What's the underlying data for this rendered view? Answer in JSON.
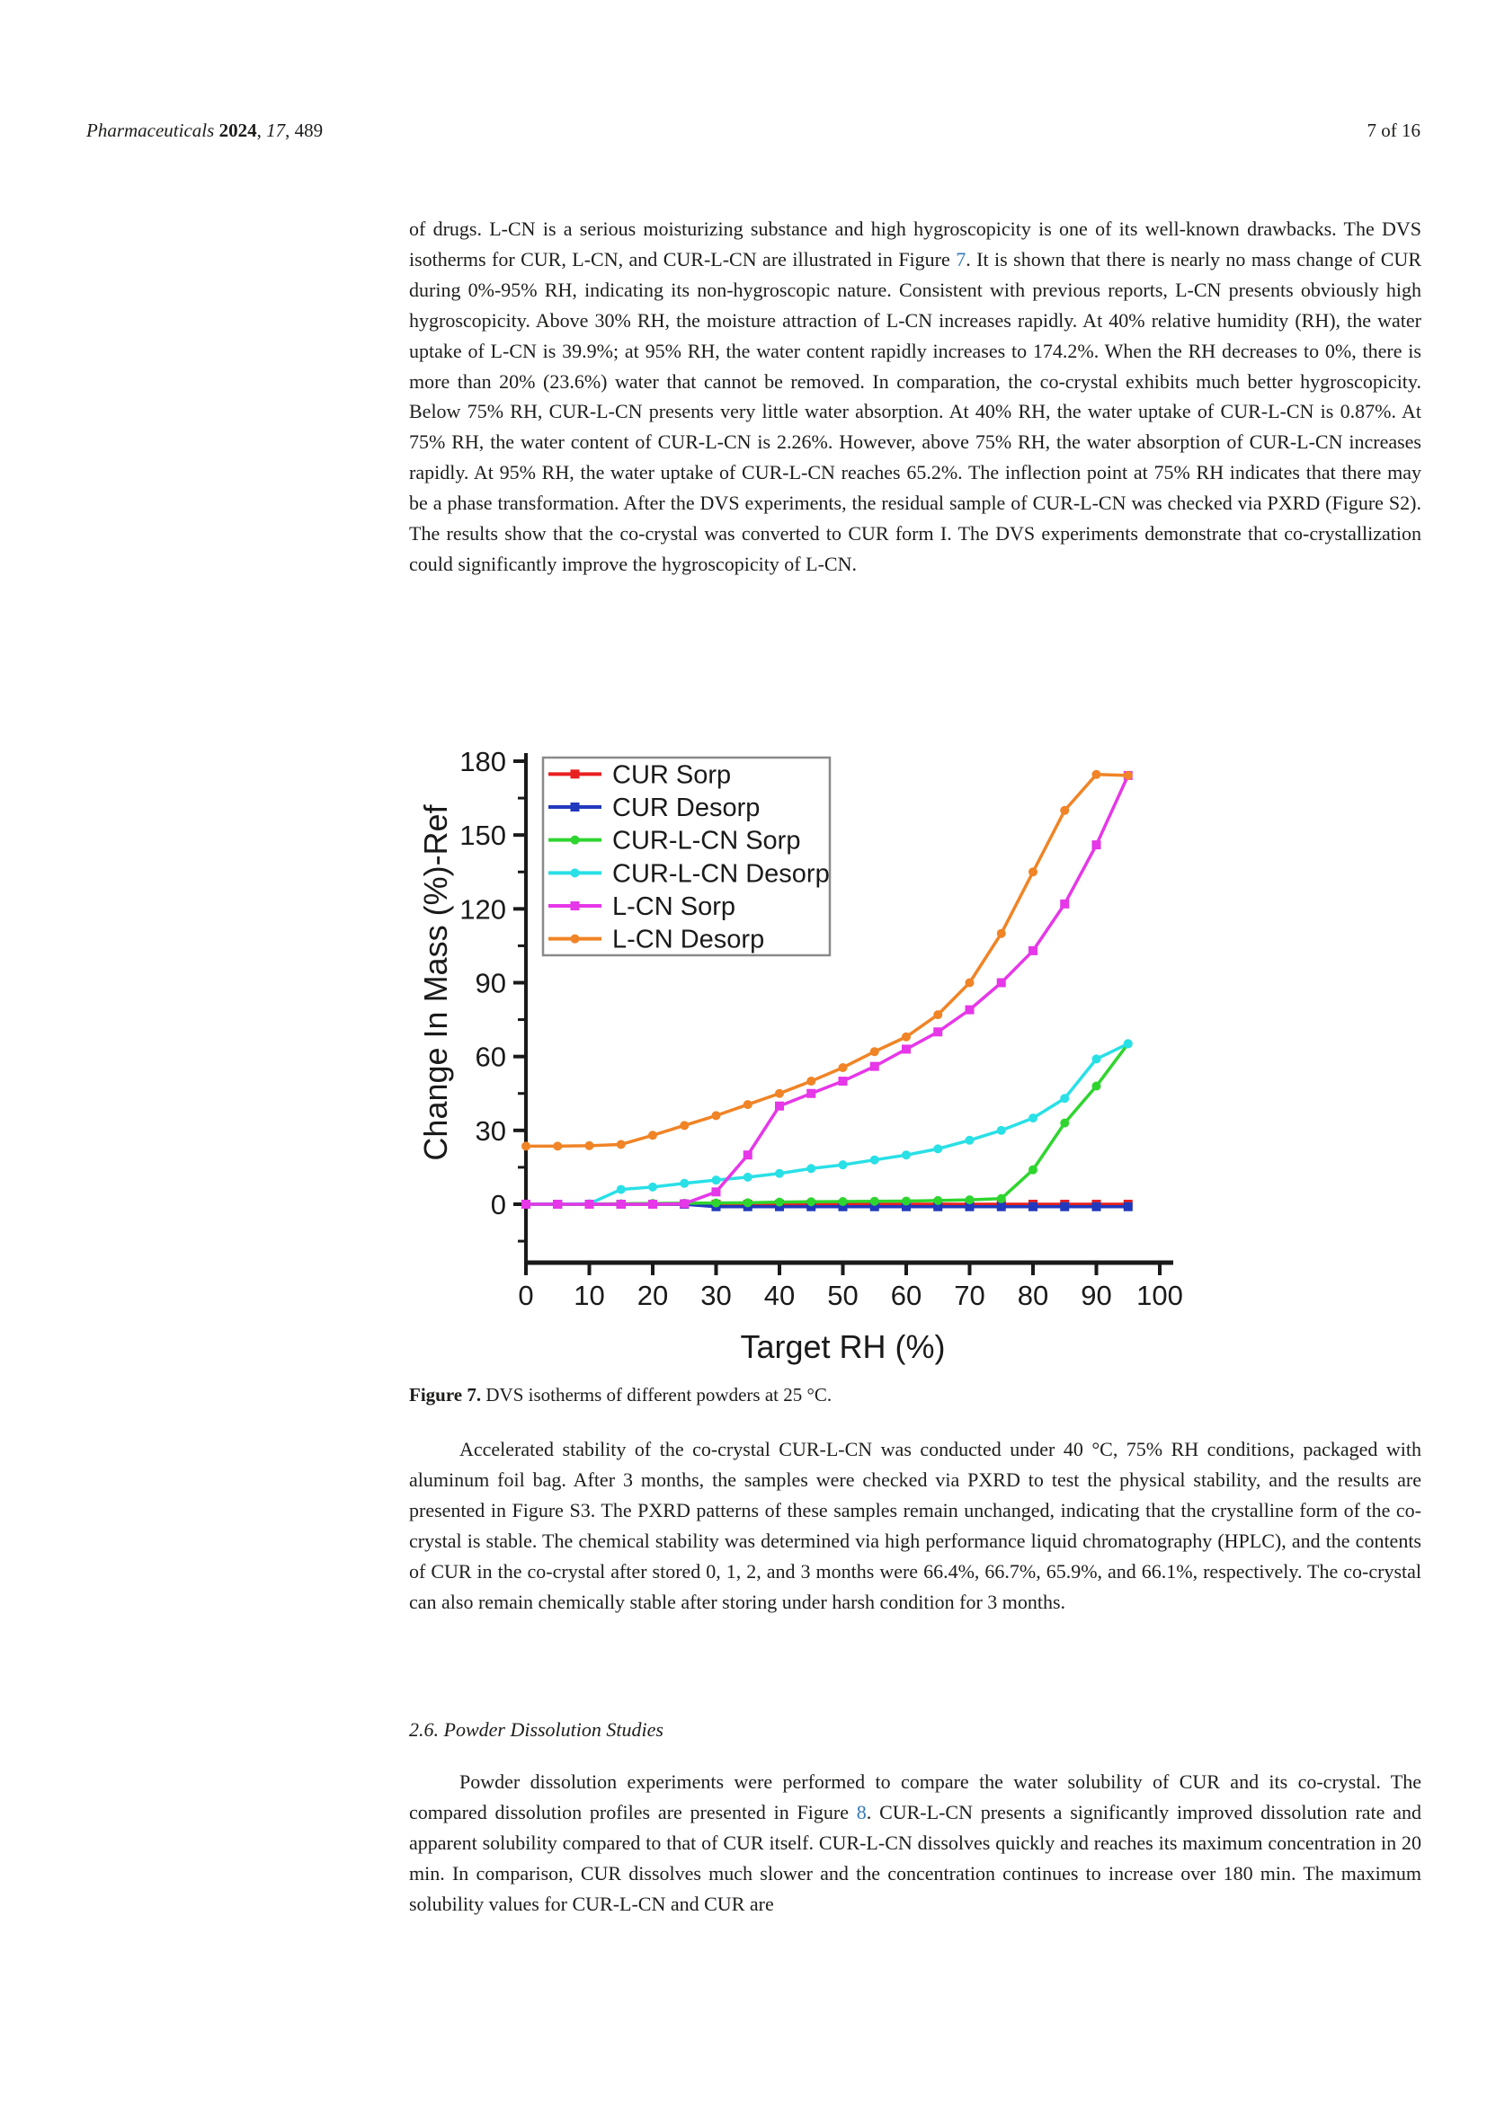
{
  "colors": {
    "text": "#1d1d1b",
    "link_blue": "#3579b8",
    "axis": "#1a1a1a",
    "legend_border": "#8a8a8a",
    "page_bg": "#ffffff"
  },
  "header": {
    "left_segments": [
      {
        "t": "Pharmaceuticals ",
        "i": true
      },
      {
        "t": "2024",
        "b": true
      },
      {
        "t": ", "
      },
      {
        "t": "17",
        "i": true
      },
      {
        "t": ", 489"
      }
    ],
    "page_info": "7 of 16"
  },
  "content": {
    "blocks": [
      {
        "type": "paragraph",
        "segments": [
          {
            "t": "of drugs. L-CN is a serious moisturizing substance and high hygroscopicity is one of its well-known drawbacks. The DVS isotherms for CUR, L-CN, and CUR-L-CN are illustrated in Figure "
          },
          {
            "t": "7",
            "link": true
          },
          {
            "t": ". It is shown that there is nearly no mass change of CUR during 0%-95% RH, indicating its non-hygroscopic nature. Consistent with previous reports, L-CN presents obviously high hygroscopicity. Above 30% RH, the moisture attraction of L-CN increases rapidly. At 40% relative humidity (RH), the water uptake of L-CN is 39.9%; at 95% RH, the water content rapidly increases to 174.2%. When the RH decreases to 0%, there is more than 20% (23.6%) water that cannot be removed. In comparation, the co-crystal exhibits much better hygroscopicity. Below 75% RH, CUR-L-CN presents very little water absorption. At 40% RH, the water uptake of CUR-L-CN is 0.87%. At 75% RH, the water content of CUR-L-CN is 2.26%. However, above 75% RH, the water absorption of CUR-L-CN increases rapidly. At 95% RH, the water uptake of CUR-L-CN reaches 65.2%. The inflection point at 75% RH indicates that there may be a phase transformation. After the DVS experiments, the residual sample of CUR-L-CN was checked via PXRD (Figure S2). The results show that the co-crystal was converted to CUR form I. The DVS experiments demonstrate that co-crystallization could significantly improve the hygroscopicity of L-CN."
          }
        ]
      },
      {
        "type": "caption",
        "segments": [
          {
            "t": "Figure 7. ",
            "b": true
          },
          {
            "t": "DVS isotherms of different powders at 25 °C."
          }
        ]
      },
      {
        "type": "paragraph",
        "segments": [
          {
            "t": "Accelerated stability of the co-crystal CUR-L-CN was conducted under 40 °C, 75% RH conditions, packaged with aluminum foil bag. After 3 months, the samples were checked via PXRD to test the physical stability, and the results are presented in Figure S3. The PXRD patterns of these samples remain unchanged, indicating that the crystalline form of the co-crystal is stable. The chemical stability was determined via high performance liquid chromatography (HPLC), and the contents of CUR in the co-crystal after stored 0, 1, 2, and 3 months were 66.4%, 66.7%, 65.9%, and 66.1%, respectively. The co-crystal can also remain chemically stable after storing under harsh condition for 3 months."
          }
        ]
      },
      {
        "type": "heading",
        "segments": [
          {
            "t": "2.6. Powder Dissolution Studies"
          }
        ]
      },
      {
        "type": "paragraph",
        "segments": [
          {
            "t": "Powder dissolution experiments were performed to compare the water solubility of CUR and its co-crystal. The compared dissolution profiles are presented in Figure "
          },
          {
            "t": "8",
            "link": true
          },
          {
            "t": ". CUR-L-CN presents a significantly improved dissolution rate and apparent solubility compared to that of CUR itself. CUR-L-CN dissolves quickly and reaches its maximum concentration in 20 min. In comparison, CUR dissolves much slower and the concentration continues to increase over 180 min. The maximum solubility values for CUR-L-CN and CUR are"
          }
        ]
      }
    ]
  },
  "chart_data": {
    "type": "line",
    "title": "",
    "xlabel": "Target RH (%)",
    "ylabel": "Change In Mass (%)-Ref",
    "xlim": [
      0,
      100
    ],
    "ylim": [
      -27,
      185
    ],
    "x_ticks": [
      0,
      10,
      20,
      30,
      40,
      50,
      60,
      70,
      80,
      90,
      100
    ],
    "y_ticks": [
      0,
      30,
      60,
      90,
      120,
      150,
      180
    ],
    "y_minor_ticks": [
      -15,
      15,
      45,
      75,
      105,
      135,
      165
    ],
    "grid": false,
    "legend_position": "upper-left-inside",
    "x": [
      0,
      5,
      10,
      15,
      20,
      25,
      30,
      35,
      40,
      45,
      50,
      55,
      60,
      65,
      70,
      75,
      80,
      85,
      90,
      95
    ],
    "series": [
      {
        "name": "CUR Sorp",
        "color": "#e8201f",
        "marker": "square",
        "values": [
          0,
          0,
          0,
          0,
          0,
          0,
          0,
          0,
          0,
          0,
          0,
          0,
          0,
          0,
          0,
          0,
          0,
          0,
          0,
          0
        ]
      },
      {
        "name": "CUR Desorp",
        "color": "#2139bd",
        "marker": "square",
        "values": [
          0,
          0,
          0,
          0,
          0,
          0,
          -1,
          -1,
          -1,
          -1,
          -1,
          -1,
          -1,
          -1,
          -1,
          -1,
          -1,
          -1,
          -1,
          -1
        ]
      },
      {
        "name": "CUR-L-CN Sorp",
        "color": "#2fd52f",
        "marker": "circle",
        "values": [
          0,
          0,
          0,
          0.2,
          0.3,
          0.4,
          0.5,
          0.6,
          0.87,
          1,
          1.1,
          1.2,
          1.3,
          1.5,
          1.8,
          2.26,
          14,
          33,
          48,
          65.2
        ]
      },
      {
        "name": "CUR-L-CN Desorp",
        "color": "#29e0e6",
        "marker": "circle",
        "values": [
          0,
          0,
          0.2,
          6,
          7,
          8.5,
          9.8,
          11,
          12.5,
          14.5,
          16,
          18,
          20,
          22.5,
          26,
          30,
          35,
          43,
          59,
          65.2
        ]
      },
      {
        "name": "L-CN Sorp",
        "color": "#e637e8",
        "marker": "square",
        "values": [
          0,
          0,
          0,
          0,
          0,
          0.2,
          5,
          20,
          39.9,
          45,
          50,
          56,
          63,
          70,
          79,
          90,
          103,
          122,
          146,
          174.2
        ]
      },
      {
        "name": "L-CN Desorp",
        "color": "#f08426",
        "marker": "circle",
        "values": [
          23.6,
          23.6,
          23.8,
          24.3,
          28,
          32,
          36,
          40.5,
          45,
          50,
          55.5,
          62,
          68,
          77,
          90,
          110,
          135,
          160,
          174.6,
          174.2
        ]
      }
    ]
  }
}
